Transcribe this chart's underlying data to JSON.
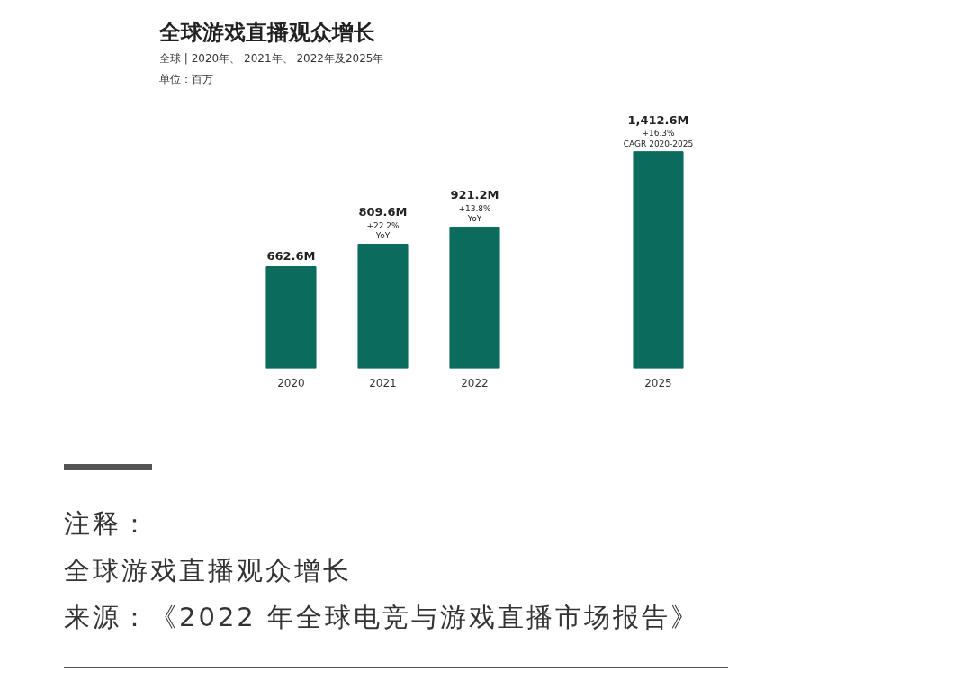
{
  "chart_data": {
    "type": "bar",
    "title": "全球游戏直播观众增长",
    "subtitle": "全球 | 2020年、 2021年、 2022年及2025年",
    "categories": [
      "2020",
      "2021",
      "2022",
      null,
      "2025"
    ],
    "values": [
      662.6,
      809.6,
      921.2,
      null,
      1412.6
    ],
    "value_labels": [
      "662.6M",
      "809.6M",
      "921.2M",
      null,
      "1,412.6M"
    ],
    "color": "#0b6b5d",
    "grid": false,
    "annotations": [
      {
        "text": "+22.2%\nYoY",
        "x": "2021",
        "y": 809.6
      },
      {
        "text": "+13.8%\nYoY",
        "x": "2022",
        "y": 921.2
      },
      {
        "text": "+16.3%\nCAGR 2020-2025",
        "x": "2025",
        "y": 1412.6
      },
      "单位：百万",
      "注释：",
      "全球游戏直播观众增长",
      "来源：《2022 年全球电竞与游戏直播市场报告》"
    ]
  }
}
